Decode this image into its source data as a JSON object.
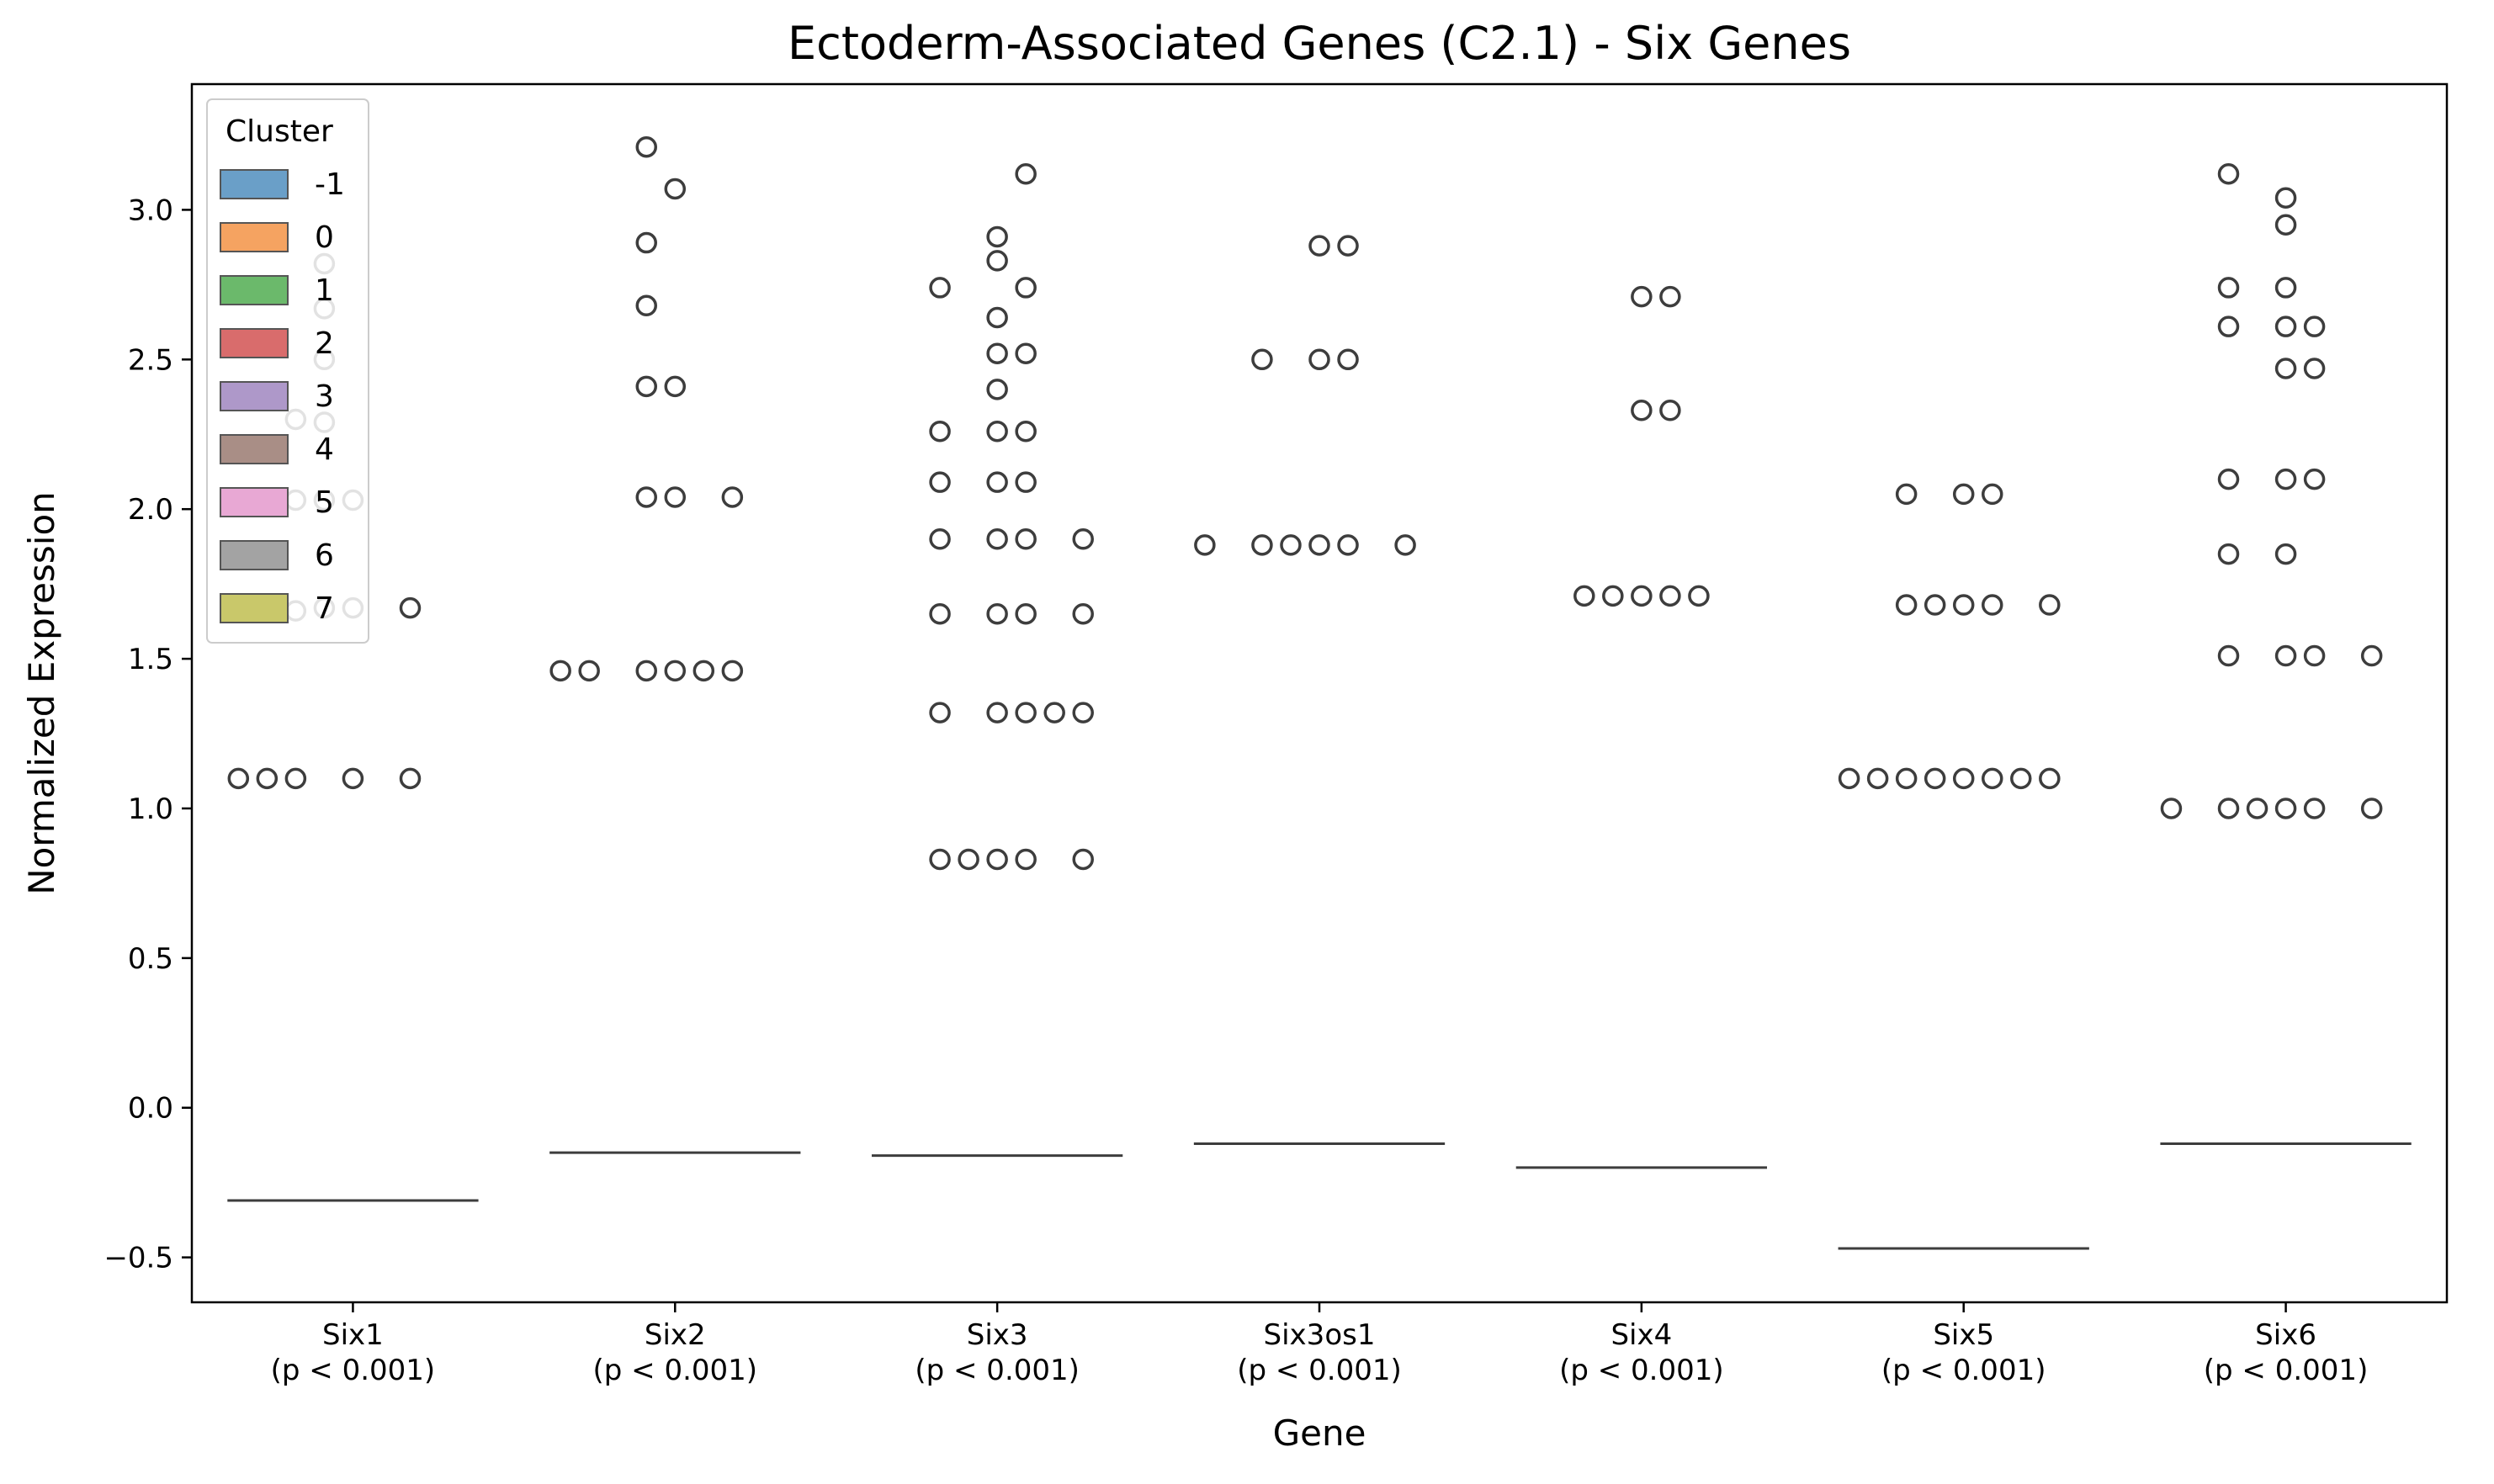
{
  "chart_data": {
    "type": "box",
    "title": "Ectoderm-Associated Genes (C2.1) - Six Genes",
    "xlabel": "Gene",
    "ylabel": "Normalized Expression",
    "ylim": [
      -0.65,
      3.42
    ],
    "yticks": [
      -0.5,
      0.0,
      0.5,
      1.0,
      1.5,
      2.0,
      2.5,
      3.0
    ],
    "ytick_labels": [
      "−0.5",
      "0.0",
      "0.5",
      "1.0",
      "1.5",
      "2.0",
      "2.5",
      "3.0"
    ],
    "grid": false,
    "categories": [
      {
        "gene": "Six1",
        "pvalue": "(p < 0.001)"
      },
      {
        "gene": "Six2",
        "pvalue": "(p < 0.001)"
      },
      {
        "gene": "Six3",
        "pvalue": "(p < 0.001)"
      },
      {
        "gene": "Six3os1",
        "pvalue": "(p < 0.001)"
      },
      {
        "gene": "Six4",
        "pvalue": "(p < 0.001)"
      },
      {
        "gene": "Six5",
        "pvalue": "(p < 0.001)"
      },
      {
        "gene": "Six6",
        "pvalue": "(p < 0.001)"
      }
    ],
    "hue_clusters": [
      "-1",
      "0",
      "1",
      "2",
      "3",
      "4",
      "5",
      "6",
      "7"
    ],
    "median_lines": [
      -0.31,
      -0.15,
      -0.16,
      -0.12,
      -0.2,
      -0.47,
      -0.12
    ],
    "outliers": [
      {
        "gene": "Six1",
        "points": [
          {
            "cluster": "-1",
            "y": 1.1
          },
          {
            "cluster": "0",
            "y": 1.1
          },
          {
            "cluster": "1",
            "y": 1.1
          },
          {
            "cluster": "1",
            "y": 1.66
          },
          {
            "cluster": "1",
            "y": 2.03
          },
          {
            "cluster": "1",
            "y": 2.3
          },
          {
            "cluster": "2",
            "y": 1.67
          },
          {
            "cluster": "2",
            "y": 2.03
          },
          {
            "cluster": "2",
            "y": 2.29
          },
          {
            "cluster": "2",
            "y": 2.5
          },
          {
            "cluster": "2",
            "y": 2.67
          },
          {
            "cluster": "2",
            "y": 2.82
          },
          {
            "cluster": "3",
            "y": 1.1
          },
          {
            "cluster": "3",
            "y": 1.67
          },
          {
            "cluster": "3",
            "y": 2.03
          },
          {
            "cluster": "5",
            "y": 1.1
          },
          {
            "cluster": "5",
            "y": 1.67
          }
        ]
      },
      {
        "gene": "Six2",
        "points": [
          {
            "cluster": "-1",
            "y": 1.46
          },
          {
            "cluster": "0",
            "y": 1.46
          },
          {
            "cluster": "2",
            "y": 1.46
          },
          {
            "cluster": "2",
            "y": 2.04
          },
          {
            "cluster": "2",
            "y": 2.41
          },
          {
            "cluster": "2",
            "y": 2.68
          },
          {
            "cluster": "2",
            "y": 2.89
          },
          {
            "cluster": "2",
            "y": 3.21
          },
          {
            "cluster": "3",
            "y": 1.46
          },
          {
            "cluster": "3",
            "y": 2.04
          },
          {
            "cluster": "3",
            "y": 2.41
          },
          {
            "cluster": "3",
            "y": 3.07
          },
          {
            "cluster": "4",
            "y": 1.46
          },
          {
            "cluster": "5",
            "y": 1.46
          },
          {
            "cluster": "5",
            "y": 2.04
          }
        ]
      },
      {
        "gene": "Six3",
        "points": [
          {
            "cluster": "1",
            "y": 0.83
          },
          {
            "cluster": "1",
            "y": 1.32
          },
          {
            "cluster": "1",
            "y": 1.65
          },
          {
            "cluster": "1",
            "y": 1.9
          },
          {
            "cluster": "1",
            "y": 2.09
          },
          {
            "cluster": "1",
            "y": 2.26
          },
          {
            "cluster": "1",
            "y": 2.74
          },
          {
            "cluster": "2",
            "y": 0.83
          },
          {
            "cluster": "3",
            "y": 0.83
          },
          {
            "cluster": "3",
            "y": 1.32
          },
          {
            "cluster": "3",
            "y": 1.65
          },
          {
            "cluster": "3",
            "y": 1.9
          },
          {
            "cluster": "3",
            "y": 2.09
          },
          {
            "cluster": "3",
            "y": 2.26
          },
          {
            "cluster": "3",
            "y": 2.4
          },
          {
            "cluster": "3",
            "y": 2.52
          },
          {
            "cluster": "3",
            "y": 2.64
          },
          {
            "cluster": "3",
            "y": 2.83
          },
          {
            "cluster": "3",
            "y": 2.91
          },
          {
            "cluster": "4",
            "y": 0.83
          },
          {
            "cluster": "4",
            "y": 1.32
          },
          {
            "cluster": "4",
            "y": 1.65
          },
          {
            "cluster": "4",
            "y": 1.9
          },
          {
            "cluster": "4",
            "y": 2.09
          },
          {
            "cluster": "4",
            "y": 2.26
          },
          {
            "cluster": "4",
            "y": 2.52
          },
          {
            "cluster": "4",
            "y": 2.74
          },
          {
            "cluster": "4",
            "y": 3.12
          },
          {
            "cluster": "5",
            "y": 1.32
          },
          {
            "cluster": "6",
            "y": 0.83
          },
          {
            "cluster": "6",
            "y": 1.32
          },
          {
            "cluster": "6",
            "y": 1.65
          },
          {
            "cluster": "6",
            "y": 1.9
          }
        ]
      },
      {
        "gene": "Six3os1",
        "points": [
          {
            "cluster": "-1",
            "y": 1.88
          },
          {
            "cluster": "1",
            "y": 1.88
          },
          {
            "cluster": "1",
            "y": 2.5
          },
          {
            "cluster": "2",
            "y": 1.88
          },
          {
            "cluster": "3",
            "y": 1.88
          },
          {
            "cluster": "3",
            "y": 2.5
          },
          {
            "cluster": "3",
            "y": 2.88
          },
          {
            "cluster": "4",
            "y": 1.88
          },
          {
            "cluster": "4",
            "y": 2.5
          },
          {
            "cluster": "4",
            "y": 2.88
          },
          {
            "cluster": "6",
            "y": 1.88
          }
        ]
      },
      {
        "gene": "Six4",
        "points": [
          {
            "cluster": "1",
            "y": 1.71
          },
          {
            "cluster": "2",
            "y": 1.71
          },
          {
            "cluster": "3",
            "y": 1.71
          },
          {
            "cluster": "3",
            "y": 2.33
          },
          {
            "cluster": "3",
            "y": 2.71
          },
          {
            "cluster": "4",
            "y": 1.71
          },
          {
            "cluster": "4",
            "y": 2.33
          },
          {
            "cluster": "4",
            "y": 2.71
          },
          {
            "cluster": "5",
            "y": 1.71
          }
        ]
      },
      {
        "gene": "Six5",
        "points": [
          {
            "cluster": "-1",
            "y": 1.1
          },
          {
            "cluster": "0",
            "y": 1.1
          },
          {
            "cluster": "1",
            "y": 1.1
          },
          {
            "cluster": "1",
            "y": 1.68
          },
          {
            "cluster": "1",
            "y": 2.05
          },
          {
            "cluster": "2",
            "y": 1.1
          },
          {
            "cluster": "2",
            "y": 1.68
          },
          {
            "cluster": "3",
            "y": 1.1
          },
          {
            "cluster": "3",
            "y": 1.68
          },
          {
            "cluster": "3",
            "y": 2.05
          },
          {
            "cluster": "4",
            "y": 1.1
          },
          {
            "cluster": "4",
            "y": 1.68
          },
          {
            "cluster": "4",
            "y": 2.05
          },
          {
            "cluster": "5",
            "y": 1.1
          },
          {
            "cluster": "6",
            "y": 1.1
          },
          {
            "cluster": "6",
            "y": 1.68
          }
        ]
      },
      {
        "gene": "Six6",
        "points": [
          {
            "cluster": "-1",
            "y": 1.0
          },
          {
            "cluster": "1",
            "y": 1.0
          },
          {
            "cluster": "1",
            "y": 1.51
          },
          {
            "cluster": "1",
            "y": 1.85
          },
          {
            "cluster": "1",
            "y": 2.1
          },
          {
            "cluster": "1",
            "y": 2.61
          },
          {
            "cluster": "1",
            "y": 2.74
          },
          {
            "cluster": "1",
            "y": 3.12
          },
          {
            "cluster": "2",
            "y": 1.0
          },
          {
            "cluster": "3",
            "y": 1.0
          },
          {
            "cluster": "3",
            "y": 1.51
          },
          {
            "cluster": "3",
            "y": 1.85
          },
          {
            "cluster": "3",
            "y": 2.1
          },
          {
            "cluster": "3",
            "y": 2.47
          },
          {
            "cluster": "3",
            "y": 2.61
          },
          {
            "cluster": "3",
            "y": 2.74
          },
          {
            "cluster": "3",
            "y": 2.95
          },
          {
            "cluster": "3",
            "y": 3.04
          },
          {
            "cluster": "4",
            "y": 1.0
          },
          {
            "cluster": "4",
            "y": 1.51
          },
          {
            "cluster": "4",
            "y": 2.1
          },
          {
            "cluster": "4",
            "y": 2.47
          },
          {
            "cluster": "4",
            "y": 2.61
          },
          {
            "cluster": "6",
            "y": 1.0
          },
          {
            "cluster": "6",
            "y": 1.51
          }
        ]
      }
    ]
  },
  "legend": {
    "title": "Cluster",
    "placement": "upper-left",
    "entries": [
      {
        "label": "-1",
        "color": "#6a9fc8"
      },
      {
        "label": "0",
        "color": "#f5a361"
      },
      {
        "label": "1",
        "color": "#6bb96b"
      },
      {
        "label": "2",
        "color": "#d96c6c"
      },
      {
        "label": "3",
        "color": "#ae98c9"
      },
      {
        "label": "4",
        "color": "#a98e86"
      },
      {
        "label": "5",
        "color": "#e8a8d4"
      },
      {
        "label": "6",
        "color": "#a3a3a3"
      },
      {
        "label": "7",
        "color": "#c9c86a"
      }
    ]
  },
  "colors": {
    "axis": "#000000",
    "marker_edge": "#3d3d3d",
    "median": "#3d3d3d",
    "background": "#ffffff"
  }
}
